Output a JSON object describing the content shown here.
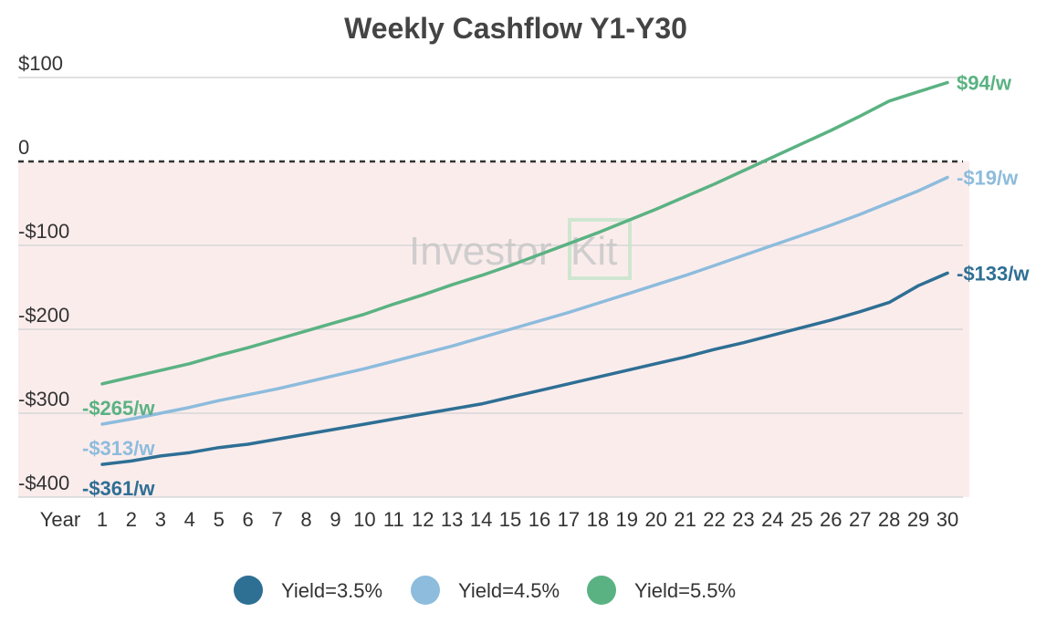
{
  "chart_data": {
    "type": "line",
    "title": "Weekly Cashflow Y1-Y30",
    "x_axis_label": "Year",
    "x": [
      1,
      2,
      3,
      4,
      5,
      6,
      7,
      8,
      9,
      10,
      11,
      12,
      13,
      14,
      15,
      16,
      17,
      18,
      19,
      20,
      21,
      22,
      23,
      24,
      25,
      26,
      27,
      28,
      29,
      30
    ],
    "y_ticks": [
      {
        "value": 100,
        "label": "$100"
      },
      {
        "value": 0,
        "label": "0"
      },
      {
        "value": -100,
        "label": "-$100"
      },
      {
        "value": -200,
        "label": "-$200"
      },
      {
        "value": -300,
        "label": "-$300"
      },
      {
        "value": -400,
        "label": "-$400"
      }
    ],
    "ylim": [
      -400,
      100
    ],
    "grid": true,
    "zero_line": "dashed",
    "negative_region_color": "#fbecec",
    "legend_position": "bottom",
    "series": [
      {
        "name": "Yield=3.5%",
        "color": "#2e6f94",
        "start_label": "-$361/w",
        "end_label": "-$133/w",
        "values": [
          -361,
          -357,
          -351,
          -347,
          -341,
          -337,
          -331,
          -325,
          -319,
          -313,
          -307,
          -301,
          -295,
          -289,
          -281,
          -273,
          -265,
          -257,
          -249,
          -241,
          -233,
          -224,
          -216,
          -207,
          -198,
          -189,
          -179,
          -168,
          -148,
          -133
        ]
      },
      {
        "name": "Yield=4.5%",
        "color": "#8dbcdc",
        "start_label": "-$313/w",
        "end_label": "-$19/w",
        "values": [
          -313,
          -307,
          -300,
          -293,
          -285,
          -278,
          -271,
          -263,
          -255,
          -247,
          -238,
          -229,
          -220,
          -210,
          -200,
          -190,
          -180,
          -169,
          -158,
          -147,
          -136,
          -124,
          -112,
          -100,
          -88,
          -76,
          -63,
          -49,
          -35,
          -19
        ]
      },
      {
        "name": "Yield=5.5%",
        "color": "#5ab282",
        "start_label": "-$265/w",
        "end_label": "$94/w",
        "values": [
          -265,
          -257,
          -249,
          -241,
          -231,
          -222,
          -212,
          -202,
          -192,
          -182,
          -170,
          -159,
          -147,
          -136,
          -124,
          -111,
          -98,
          -85,
          -71,
          -57,
          -42,
          -27,
          -11,
          5,
          21,
          37,
          54,
          72,
          83,
          94
        ]
      }
    ]
  },
  "watermark": {
    "text": "Investor",
    "suffix": "Kit"
  }
}
